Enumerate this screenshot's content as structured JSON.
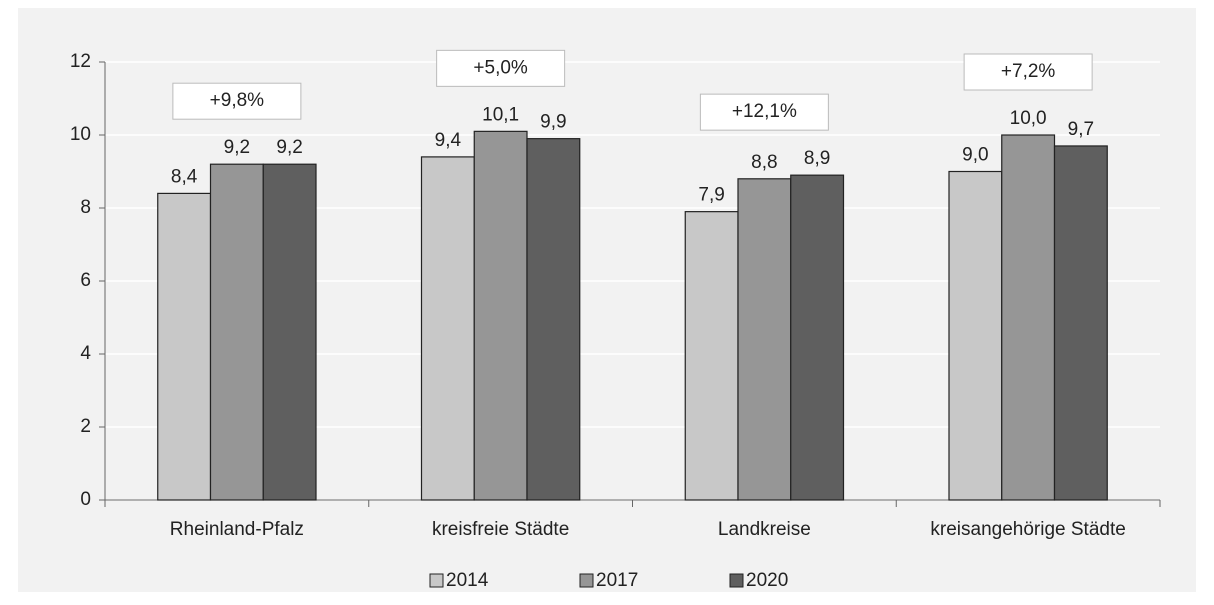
{
  "chart_data": {
    "type": "bar",
    "categories": [
      "Rheinland-Pfalz",
      "kreisfreie Städte",
      "Landkreise",
      "kreisangehörige Städte"
    ],
    "series": [
      {
        "name": "2014",
        "color": "#c8c8c8",
        "values": [
          8.4,
          9.4,
          7.9,
          9.0
        ],
        "value_labels": [
          "8,4",
          "9,4",
          "7,9",
          "9,0"
        ]
      },
      {
        "name": "2017",
        "color": "#969696",
        "values": [
          9.2,
          10.1,
          8.8,
          10.0
        ],
        "value_labels": [
          "9,2",
          "10,1",
          "8,8",
          "10,0"
        ]
      },
      {
        "name": "2020",
        "color": "#5f5f5f",
        "values": [
          9.2,
          9.9,
          8.9,
          9.7
        ],
        "value_labels": [
          "9,2",
          "9,9",
          "8,9",
          "9,7"
        ]
      }
    ],
    "annotations": [
      "+9,8%",
      "+5,0%",
      "+12,1%",
      "+7,2%"
    ],
    "ylim": [
      0,
      12
    ],
    "yticks": [
      0,
      2,
      4,
      6,
      8,
      10,
      12
    ],
    "grid": true,
    "legend": "bottom"
  }
}
